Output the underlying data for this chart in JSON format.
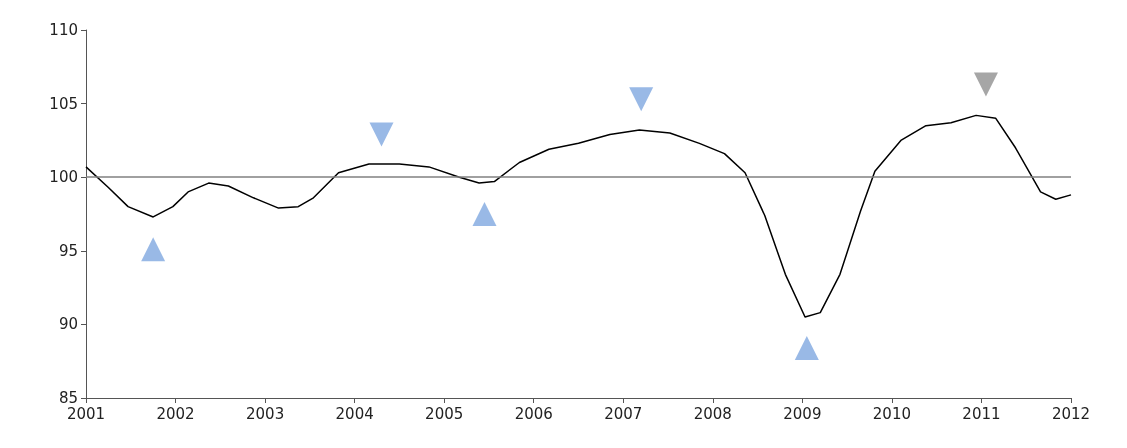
{
  "chart_data": {
    "type": "line",
    "xlim": [
      2001,
      2012
    ],
    "xticks": [
      2001,
      2002,
      2003,
      2004,
      2005,
      2006,
      2007,
      2008,
      2009,
      2010,
      2011,
      2012
    ],
    "ylim": [
      85,
      110
    ],
    "yticks": [
      85,
      90,
      95,
      100,
      105,
      110
    ],
    "grid": false,
    "ref_lines": [
      {
        "axis": "y",
        "value": 100,
        "color": "#808080"
      }
    ],
    "series": [
      {
        "color": "#000000",
        "marker": "none",
        "x": [
          2001.0,
          2001.25,
          2001.47,
          2001.75,
          2001.97,
          2002.14,
          2002.37,
          2002.59,
          2002.87,
          2003.15,
          2003.37,
          2003.54,
          2003.82,
          2004.16,
          2004.5,
          2004.83,
          2005.17,
          2005.39,
          2005.56,
          2005.84,
          2006.17,
          2006.5,
          2006.85,
          2007.18,
          2007.52,
          2007.85,
          2008.13,
          2008.36,
          2008.58,
          2008.81,
          2009.03,
          2009.2,
          2009.42,
          2009.65,
          2009.81,
          2010.1,
          2010.38,
          2010.66,
          2010.94,
          2011.16,
          2011.38,
          2011.66,
          2011.83,
          2012.0
        ],
        "values": [
          100.7,
          99.3,
          98.0,
          97.3,
          98.0,
          99.0,
          99.6,
          99.4,
          98.6,
          97.9,
          98.0,
          98.6,
          100.3,
          100.9,
          100.9,
          100.7,
          100.0,
          99.6,
          99.7,
          101.0,
          101.9,
          102.3,
          102.9,
          103.2,
          103.0,
          102.3,
          101.6,
          100.3,
          97.4,
          93.4,
          90.5,
          90.8,
          93.4,
          97.7,
          100.4,
          102.5,
          103.5,
          103.7,
          104.2,
          104.0,
          102.0,
          99.0,
          98.5,
          98.8
        ]
      },
      {
        "type": "scatter",
        "color": "#7fa7e0",
        "marker": "triangle",
        "x": [
          2001.75,
          2004.3,
          2005.45,
          2007.2,
          2009.05
        ],
        "values": [
          95.1,
          102.9,
          97.5,
          105.3,
          88.4
        ]
      },
      {
        "type": "scatter",
        "color": "#909090",
        "marker": "triangle",
        "x": [
          2011.05
        ],
        "values": [
          106.3
        ]
      }
    ]
  }
}
